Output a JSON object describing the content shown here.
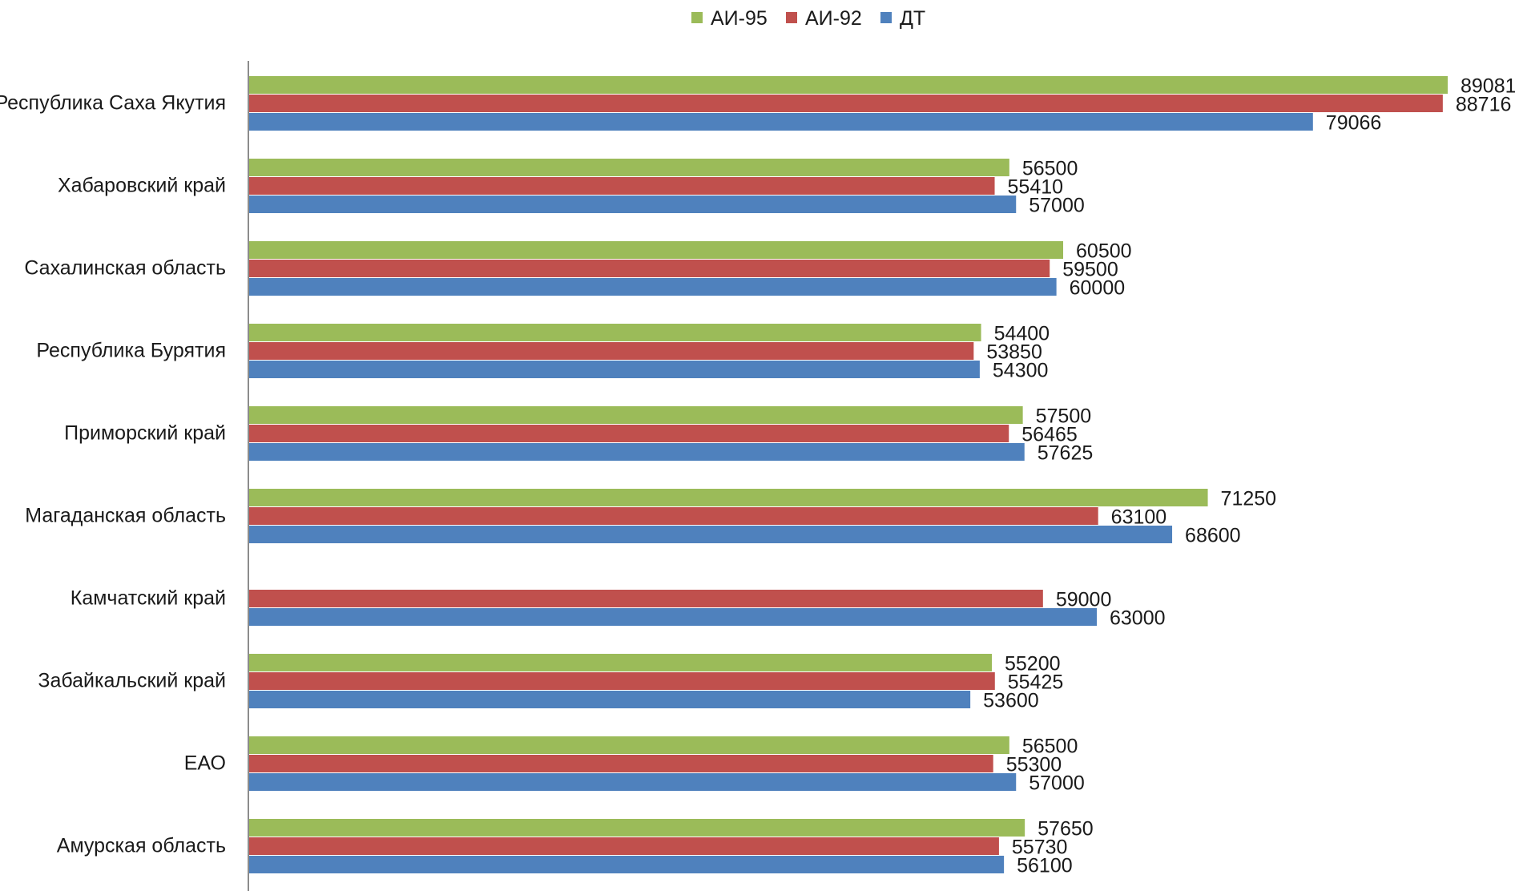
{
  "chart_data": {
    "type": "bar",
    "orientation": "horizontal",
    "categories": [
      "Республика Саха Якутия",
      "Хабаровский край",
      "Сахалинская область",
      "Республика Бурятия",
      "Приморский край",
      "Магаданская область",
      "Камчатский край",
      "Забайкальский край",
      "ЕАО",
      "Амурская область"
    ],
    "series": [
      {
        "name": "АИ-95",
        "color": "#9bbb59",
        "values": [
          89081,
          56500,
          60500,
          54400,
          57500,
          71250,
          null,
          55200,
          56500,
          57650
        ]
      },
      {
        "name": "АИ-92",
        "color": "#c0504d",
        "values": [
          88716,
          55410,
          59500,
          53850,
          56465,
          63100,
          59000,
          55425,
          55300,
          55730
        ]
      },
      {
        "name": "ДТ",
        "color": "#4f81bd",
        "values": [
          79066,
          57000,
          60000,
          54300,
          57625,
          68600,
          63000,
          53600,
          57000,
          56100
        ]
      }
    ],
    "xlim": [
      0,
      90000
    ],
    "grid": false,
    "data_labels": true,
    "legend_position": "top"
  }
}
